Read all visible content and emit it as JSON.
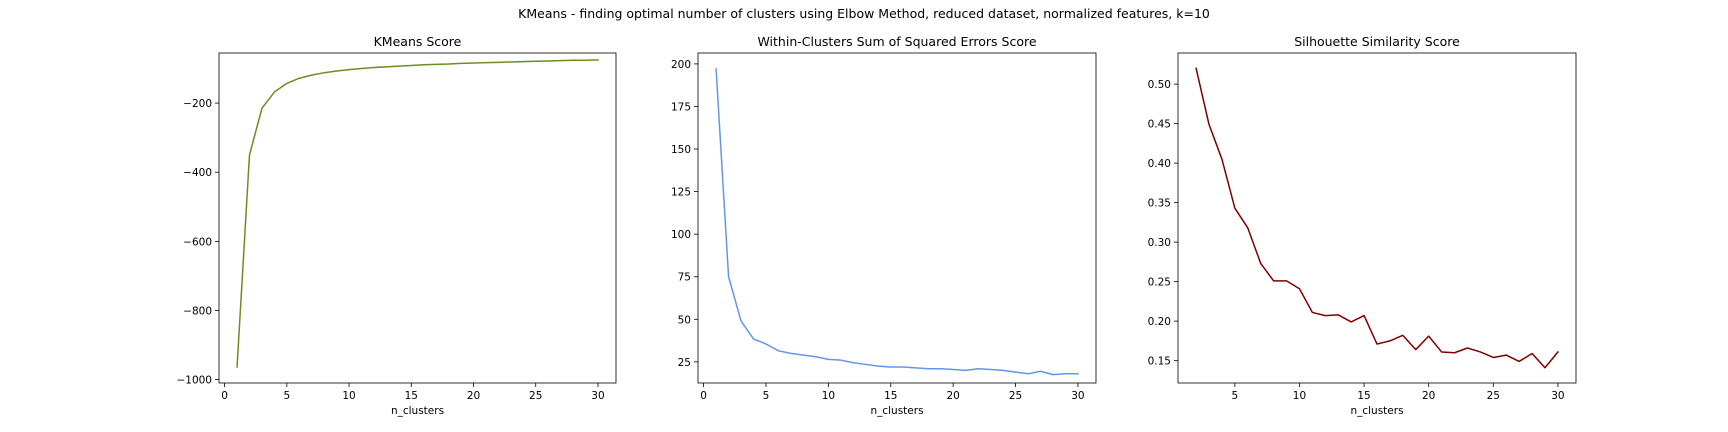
{
  "figure": {
    "suptitle": "KMeans - finding optimal number of clusters using Elbow Method, reduced dataset, normalized features, k=10"
  },
  "chart_data": [
    {
      "type": "line",
      "title": "KMeans Score",
      "xlabel": "n_clusters",
      "ylabel": "",
      "color": "#6b8e23",
      "xlim": [
        -0.45,
        31.45
      ],
      "ylim": [
        -1010,
        -55
      ],
      "xticks": [
        0,
        5,
        10,
        15,
        20,
        25,
        30
      ],
      "yticks": [
        -1000,
        -800,
        -600,
        -400,
        -200
      ],
      "x": [
        1,
        2,
        3,
        4,
        5,
        6,
        7,
        8,
        9,
        10,
        11,
        12,
        13,
        14,
        15,
        16,
        17,
        18,
        19,
        20,
        21,
        22,
        23,
        24,
        25,
        26,
        27,
        28,
        29,
        30
      ],
      "y": [
        -964,
        -350,
        -215,
        -168,
        -143,
        -128,
        -119,
        -112,
        -107,
        -103,
        -100,
        -97,
        -95,
        -93,
        -91,
        -89,
        -88,
        -87,
        -85,
        -84,
        -83,
        -82,
        -81,
        -80,
        -79,
        -78,
        -77,
        -76,
        -76,
        -75
      ]
    },
    {
      "type": "line",
      "title": "Within-Clusters Sum of Squared Errors Score",
      "xlabel": "n_clusters",
      "ylabel": "",
      "color": "#6495ed",
      "xlim": [
        -0.45,
        31.45
      ],
      "ylim": [
        12.6,
        206.4
      ],
      "xticks": [
        0,
        5,
        10,
        15,
        20,
        25,
        30
      ],
      "yticks": [
        25,
        50,
        75,
        100,
        125,
        150,
        175,
        200
      ],
      "x": [
        1,
        2,
        3,
        4,
        5,
        6,
        7,
        8,
        9,
        10,
        11,
        12,
        13,
        14,
        15,
        16,
        17,
        18,
        19,
        20,
        21,
        22,
        23,
        24,
        25,
        26,
        27,
        28,
        29,
        30
      ],
      "y": [
        197,
        75,
        49,
        38.5,
        35.5,
        31.5,
        30,
        29,
        28,
        26.5,
        26,
        24.5,
        23.5,
        22.5,
        22,
        22,
        21.5,
        21,
        21,
        20.5,
        20,
        21,
        20.5,
        20,
        19,
        18,
        19.5,
        17.5,
        18,
        18
      ]
    },
    {
      "type": "line",
      "title": "Silhouette Similarity Score",
      "xlabel": "n_clusters",
      "ylabel": "",
      "color": "#800000",
      "xlim": [
        0.6,
        31.4
      ],
      "ylim": [
        0.1217,
        0.5394
      ],
      "xticks": [
        5,
        10,
        15,
        20,
        25,
        30
      ],
      "yticks": [
        0.15,
        0.2,
        0.25,
        0.3,
        0.35,
        0.4,
        0.45,
        0.5
      ],
      "ytick_labels": [
        "0.15",
        "0.20",
        "0.25",
        "0.30",
        "0.35",
        "0.40",
        "0.45",
        "0.50"
      ],
      "x": [
        2,
        3,
        4,
        5,
        6,
        7,
        8,
        9,
        10,
        11,
        12,
        13,
        14,
        15,
        16,
        17,
        18,
        19,
        20,
        21,
        22,
        23,
        24,
        25,
        26,
        27,
        28,
        29,
        30
      ],
      "y": [
        0.52,
        0.449,
        0.405,
        0.343,
        0.318,
        0.273,
        0.251,
        0.251,
        0.241,
        0.211,
        0.207,
        0.208,
        0.199,
        0.207,
        0.171,
        0.175,
        0.182,
        0.164,
        0.181,
        0.161,
        0.16,
        0.166,
        0.161,
        0.154,
        0.157,
        0.149,
        0.159,
        0.141,
        0.161
      ]
    }
  ]
}
